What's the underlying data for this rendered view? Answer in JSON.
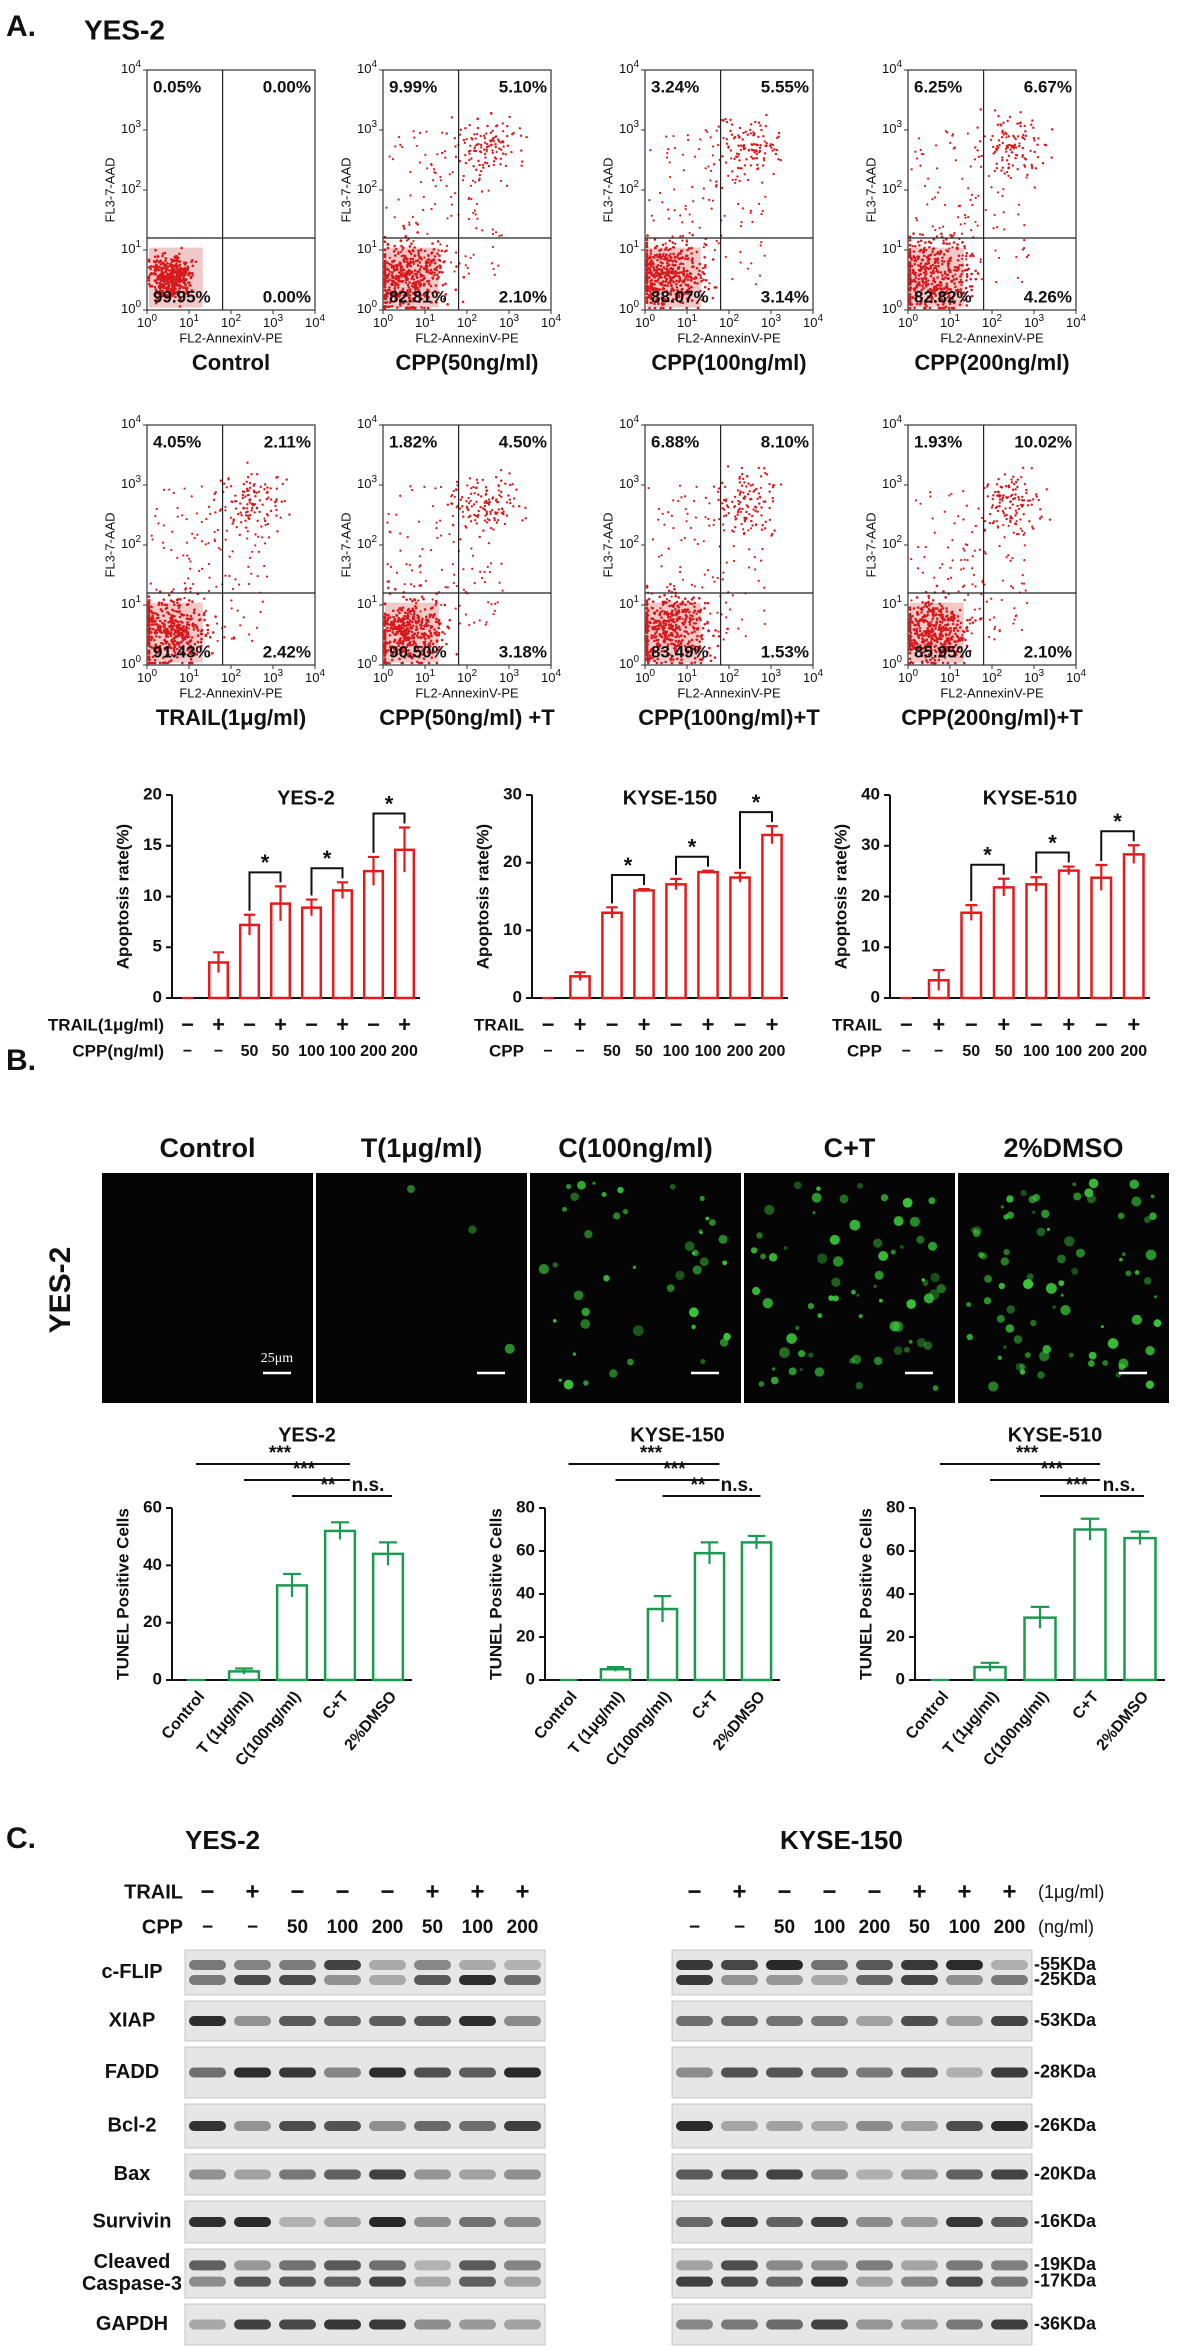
{
  "panel_a": {
    "label": "A.",
    "cell_line": "YES-2",
    "flow": {
      "x_label": "FL2-AnnexinV-PE",
      "y_label": "FL3-7-AAD",
      "tick_base": "10",
      "tick_exponents": [
        0,
        1,
        2,
        3,
        4
      ],
      "plots": [
        {
          "caption": "Control",
          "quadrants": [
            "0.05%",
            "0.00%",
            "99.95%",
            "0.00%"
          ]
        },
        {
          "caption": "CPP(50ng/ml)",
          "quadrants": [
            "9.99%",
            "5.10%",
            "82.81%",
            "2.10%"
          ]
        },
        {
          "caption": "CPP(100ng/ml)",
          "quadrants": [
            "3.24%",
            "5.55%",
            "88.07%",
            "3.14%"
          ]
        },
        {
          "caption": "CPP(200ng/ml)",
          "quadrants": [
            "6.25%",
            "6.67%",
            "82.82%",
            "4.26%"
          ]
        },
        {
          "caption": "TRAIL(1μg/ml)",
          "quadrants": [
            "4.05%",
            "2.11%",
            "91.43%",
            "2.42%"
          ]
        },
        {
          "caption": "CPP(50ng/ml) +T",
          "quadrants": [
            "1.82%",
            "4.50%",
            "90.50%",
            "3.18%"
          ]
        },
        {
          "caption": "CPP(100ng/ml)+T",
          "quadrants": [
            "6.88%",
            "8.10%",
            "83.49%",
            "1.53%"
          ]
        },
        {
          "caption": "CPP(200ng/ml)+T",
          "quadrants": [
            "1.93%",
            "10.02%",
            "85.95%",
            "2.10%"
          ]
        }
      ]
    }
  },
  "chart_data": [
    {
      "type": "bar",
      "title": "YES-2",
      "y_label": "Apoptosis rate(%)",
      "treatments": [
        {
          "label": "TRAIL(1μg/ml)",
          "marks": [
            "−",
            "+",
            "−",
            "+",
            "−",
            "+",
            "−",
            "+"
          ]
        },
        {
          "label": "CPP(ng/ml)",
          "marks": [
            "−",
            "−",
            "50",
            "50",
            "100",
            "100",
            "200",
            "200"
          ]
        }
      ],
      "values": [
        0,
        3.5,
        7.2,
        9.3,
        8.9,
        10.6,
        12.5,
        14.6
      ],
      "errors": [
        0,
        1.0,
        1.0,
        1.7,
        0.8,
        0.8,
        1.4,
        2.2
      ],
      "color": "#e41a1c",
      "ylim": [
        0,
        20
      ],
      "yticks": [
        0,
        5,
        10,
        15,
        20
      ],
      "significance": [
        "*",
        "*",
        "*"
      ]
    },
    {
      "type": "bar",
      "title": "KYSE-150",
      "y_label": "Apoptosis rate(%)",
      "treatments": [
        {
          "label": "TRAIL",
          "marks": [
            "−",
            "+",
            "−",
            "+",
            "−",
            "+",
            "−",
            "+"
          ]
        },
        {
          "label": "CPP",
          "marks": [
            "−",
            "−",
            "50",
            "50",
            "100",
            "100",
            "200",
            "200"
          ]
        }
      ],
      "values": [
        0,
        3.2,
        12.6,
        15.9,
        16.8,
        18.6,
        17.8,
        24.1
      ],
      "errors": [
        0,
        0.6,
        0.8,
        0.2,
        0.8,
        0.2,
        0.7,
        1.3
      ],
      "color": "#e41a1c",
      "ylim": [
        0,
        30
      ],
      "yticks": [
        0,
        10,
        20,
        30
      ],
      "significance": [
        "*",
        "*",
        "*"
      ]
    },
    {
      "type": "bar",
      "title": "KYSE-510",
      "y_label": "Apoptosis rate(%)",
      "treatments": [
        {
          "label": "TRAIL",
          "marks": [
            "−",
            "+",
            "−",
            "+",
            "−",
            "+",
            "−",
            "+"
          ]
        },
        {
          "label": "CPP",
          "marks": [
            "−",
            "−",
            "50",
            "50",
            "100",
            "100",
            "200",
            "200"
          ]
        }
      ],
      "values": [
        0,
        3.5,
        16.8,
        21.8,
        22.4,
        25.1,
        23.7,
        28.3
      ],
      "errors": [
        0,
        2.0,
        1.5,
        1.7,
        1.4,
        0.8,
        2.5,
        1.8
      ],
      "color": "#e41a1c",
      "ylim": [
        0,
        40
      ],
      "yticks": [
        0,
        10,
        20,
        30,
        40
      ],
      "significance": [
        "*",
        "*",
        "*"
      ]
    },
    {
      "type": "bar",
      "title": "YES-2",
      "y_label": "TUNEL Positive Cells",
      "categories": [
        "Control",
        "T (1μg/ml)",
        "C(100ng/ml)",
        "C+T",
        "2%DMSO"
      ],
      "values": [
        0,
        3,
        33,
        52,
        44
      ],
      "errors": [
        0,
        1,
        4,
        3,
        4
      ],
      "color": "#1a9a50",
      "ylim": [
        0,
        60
      ],
      "yticks": [
        0,
        20,
        40,
        60
      ],
      "significance": [
        "***",
        "***",
        "**",
        "n.s."
      ]
    },
    {
      "type": "bar",
      "title": "KYSE-150",
      "y_label": "TUNEL Positive Cells",
      "categories": [
        "Control",
        "T (1μg/ml)",
        "C(100ng/ml)",
        "C+T",
        "2%DMSO"
      ],
      "values": [
        0,
        5,
        33,
        59,
        64
      ],
      "errors": [
        0,
        1,
        6,
        5,
        3
      ],
      "color": "#1a9a50",
      "ylim": [
        0,
        80
      ],
      "yticks": [
        0,
        20,
        40,
        60,
        80
      ],
      "significance": [
        "***",
        "***",
        "**",
        "n.s."
      ]
    },
    {
      "type": "bar",
      "title": "KYSE-510",
      "y_label": "TUNEL Positive Cells",
      "categories": [
        "Control",
        "T (1μg/ml)",
        "C(100ng/ml)",
        "C+T",
        "2%DMSO"
      ],
      "values": [
        0,
        6,
        29,
        70,
        66
      ],
      "errors": [
        0,
        2,
        5,
        5,
        3
      ],
      "color": "#1a9a50",
      "ylim": [
        0,
        80
      ],
      "yticks": [
        0,
        20,
        40,
        60,
        80
      ],
      "significance": [
        "***",
        "***",
        "***",
        "n.s."
      ]
    }
  ],
  "panel_b": {
    "label": "B.",
    "row_label": "YES-2",
    "columns": [
      "Control",
      "T(1μg/ml)",
      "C(100ng/ml)",
      "C+T",
      "2%DMSO"
    ],
    "scale_bar": "25μm"
  },
  "panel_c": {
    "label": "C.",
    "left": {
      "title": "YES-2",
      "rows": [
        {
          "label": "TRAIL",
          "marks": [
            "−",
            "+",
            "−",
            "−",
            "−",
            "+",
            "+",
            "+"
          ]
        },
        {
          "label": "CPP",
          "marks": [
            "−",
            "−",
            "50",
            "100",
            "200",
            "50",
            "100",
            "200"
          ]
        }
      ]
    },
    "right": {
      "title": "KYSE-150",
      "rows": [
        {
          "unit": "(1μg/ml)",
          "marks": [
            "−",
            "+",
            "−",
            "−",
            "−",
            "+",
            "+",
            "+"
          ]
        },
        {
          "unit": "(ng/ml)",
          "marks": [
            "−",
            "−",
            "50",
            "100",
            "200",
            "50",
            "100",
            "200"
          ]
        }
      ]
    },
    "proteins": [
      [
        "c-FLIP"
      ],
      [
        "XIAP"
      ],
      [
        "FADD"
      ],
      [
        "Bcl-2"
      ],
      [
        "Bax"
      ],
      [
        "Survivin"
      ],
      [
        "Cleaved",
        "Caspase-3"
      ],
      [
        "GAPDH"
      ]
    ],
    "sizes": [
      [
        "-55KDa",
        "-25KDa"
      ],
      [
        "-53KDa"
      ],
      [
        "-28KDa"
      ],
      [
        "-26KDa"
      ],
      [
        "-20KDa"
      ],
      [
        "-16KDa"
      ],
      [
        "-19KDa",
        "-17KDa"
      ],
      [
        "-36KDa"
      ]
    ]
  }
}
